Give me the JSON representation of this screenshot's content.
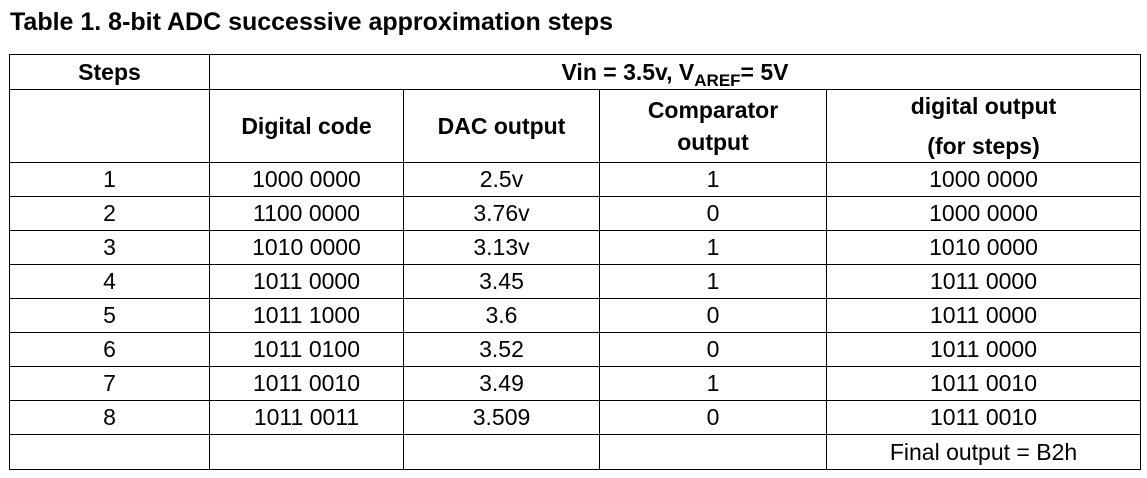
{
  "caption": "Table 1. 8-bit ADC successive approximation steps",
  "table": {
    "steps_header": "Steps",
    "condition": {
      "prefix": "Vin = 3.5v, V",
      "subscript": "AREF",
      "suffix": "= 5V"
    },
    "columns": {
      "digital_code": "Digital code",
      "dac_output": "DAC output",
      "comparator_line1": "Comparator",
      "comparator_line2": "output",
      "digital_output_line1": "digital output",
      "digital_output_line2": "(for steps)"
    },
    "rows": [
      {
        "step": "1",
        "code": "1000 0000",
        "dac": "2.5v",
        "comparator": "1",
        "output": "1000 0000"
      },
      {
        "step": "2",
        "code": "1100 0000",
        "dac": "3.76v",
        "comparator": "0",
        "output": "1000 0000"
      },
      {
        "step": "3",
        "code": "1010 0000",
        "dac": "3.13v",
        "comparator": "1",
        "output": "1010 0000"
      },
      {
        "step": "4",
        "code": "1011 0000",
        "dac": "3.45",
        "comparator": "1",
        "output": "1011 0000"
      },
      {
        "step": "5",
        "code": "1011 1000",
        "dac": "3.6",
        "comparator": "0",
        "output": "1011 0000"
      },
      {
        "step": "6",
        "code": "1011 0100",
        "dac": "3.52",
        "comparator": "0",
        "output": "1011 0000"
      },
      {
        "step": "7",
        "code": "1011 0010",
        "dac": "3.49",
        "comparator": "1",
        "output": "1011 0010"
      },
      {
        "step": "8",
        "code": "1011 0011",
        "dac": "3.509",
        "comparator": "0",
        "output": "1011 0010"
      }
    ],
    "final_output": "Final output = B2h"
  }
}
